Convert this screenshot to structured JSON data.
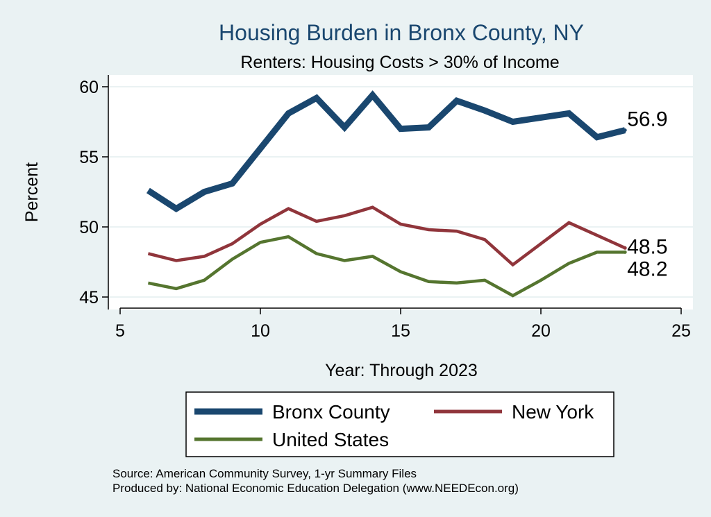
{
  "chart_data": {
    "type": "line",
    "title": "Housing Burden in Bronx County, NY",
    "subtitle": "Renters: Housing Costs > 30% of Income",
    "xlabel": "Year: Through 2023",
    "ylabel": "Percent",
    "xlim": [
      5,
      25
    ],
    "ylim": [
      44.4,
      60.4
    ],
    "xticks": [
      5,
      10,
      15,
      20,
      25
    ],
    "yticks": [
      45,
      50,
      55,
      60
    ],
    "grid": true,
    "legend_position": "bottom",
    "series": [
      {
        "name": "Bronx County",
        "color": "#1a476f",
        "x": [
          6,
          7,
          8,
          9,
          10,
          11,
          12,
          13,
          14,
          15,
          16,
          17,
          18,
          19,
          20,
          21,
          22,
          23
        ],
        "values": [
          52.6,
          51.3,
          52.5,
          53.1,
          55.6,
          58.1,
          59.2,
          57.1,
          59.4,
          57.0,
          57.1,
          59.0,
          58.3,
          57.5,
          57.8,
          58.1,
          56.4,
          56.9
        ],
        "end_label": "56.9"
      },
      {
        "name": "New York",
        "color": "#90353b",
        "x": [
          6,
          7,
          8,
          9,
          10,
          11,
          12,
          13,
          14,
          15,
          16,
          17,
          18,
          19,
          20,
          21,
          22,
          23
        ],
        "values": [
          48.1,
          47.6,
          47.9,
          48.8,
          50.2,
          51.3,
          50.4,
          50.8,
          51.4,
          50.2,
          49.8,
          49.7,
          49.1,
          47.3,
          48.8,
          50.3,
          49.4,
          48.5
        ],
        "end_label": "48.5"
      },
      {
        "name": "United States",
        "color": "#55752f",
        "x": [
          6,
          7,
          8,
          9,
          10,
          11,
          12,
          13,
          14,
          15,
          16,
          17,
          18,
          19,
          20,
          21,
          22,
          23
        ],
        "values": [
          46.0,
          45.6,
          46.2,
          47.7,
          48.9,
          49.3,
          48.1,
          47.6,
          47.9,
          46.8,
          46.1,
          46.0,
          46.2,
          45.1,
          46.2,
          47.4,
          48.2,
          48.2
        ],
        "end_label": "48.2"
      }
    ]
  },
  "notes": {
    "source": "Source: American Community Survey, 1-yr Summary Files",
    "produced_by": "Produced by: National Economic Education Delegation (www.NEEDEcon.org)"
  }
}
